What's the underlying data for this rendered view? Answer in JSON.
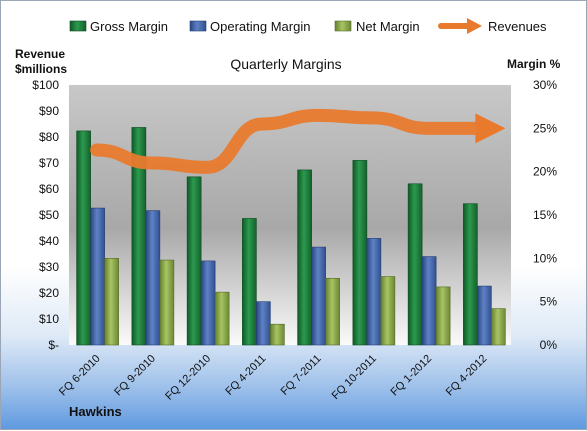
{
  "chart_data": {
    "type": "bar",
    "title": "Quarterly Margins",
    "categories": [
      "FQ 6-2010",
      "FQ 9-2010",
      "FQ 12-2010",
      "FQ 4-2011",
      "FQ 7-2011",
      "FQ 10-2011",
      "FQ 1-2012",
      "FQ 4-2012"
    ],
    "series": [
      {
        "name": "Gross Margin",
        "values": [
          24.7,
          25.1,
          19.4,
          14.6,
          20.2,
          21.3,
          18.6,
          16.3
        ],
        "color": "#1f7a3c"
      },
      {
        "name": "Operating Margin",
        "values": [
          15.8,
          15.5,
          9.7,
          5.0,
          11.3,
          12.3,
          10.2,
          6.8
        ],
        "color": "#4466a8"
      },
      {
        "name": "Net Margin",
        "values": [
          10.0,
          9.8,
          6.1,
          2.4,
          7.7,
          7.9,
          6.7,
          4.2
        ],
        "color": "#8aa648"
      },
      {
        "name": "Revenues",
        "values": [
          22.5,
          21.0,
          20.5,
          25.5,
          26.5,
          26.2,
          25.0,
          25.0
        ],
        "color": "#e87a2e",
        "render": "arrow-line"
      }
    ],
    "ylabel_left": "Revenue $millions",
    "ylabel_right": "Margin %",
    "ylim_left": [
      0,
      100
    ],
    "ylim_right": [
      0,
      30
    ],
    "left_ticks": [
      "$-",
      "$10",
      "$20",
      "$30",
      "$40",
      "$50",
      "$60",
      "$70",
      "$80",
      "$90",
      "$100"
    ],
    "right_ticks": [
      "0%",
      "5%",
      "10%",
      "15%",
      "20%",
      "25%",
      "30%"
    ],
    "grid": false,
    "legend_position": "top"
  },
  "footer_label": "Hawkins",
  "colors": {
    "plot_top": "#bdbdbd",
    "plot_bottom": "#ffffff",
    "axis_text": "#111111"
  }
}
